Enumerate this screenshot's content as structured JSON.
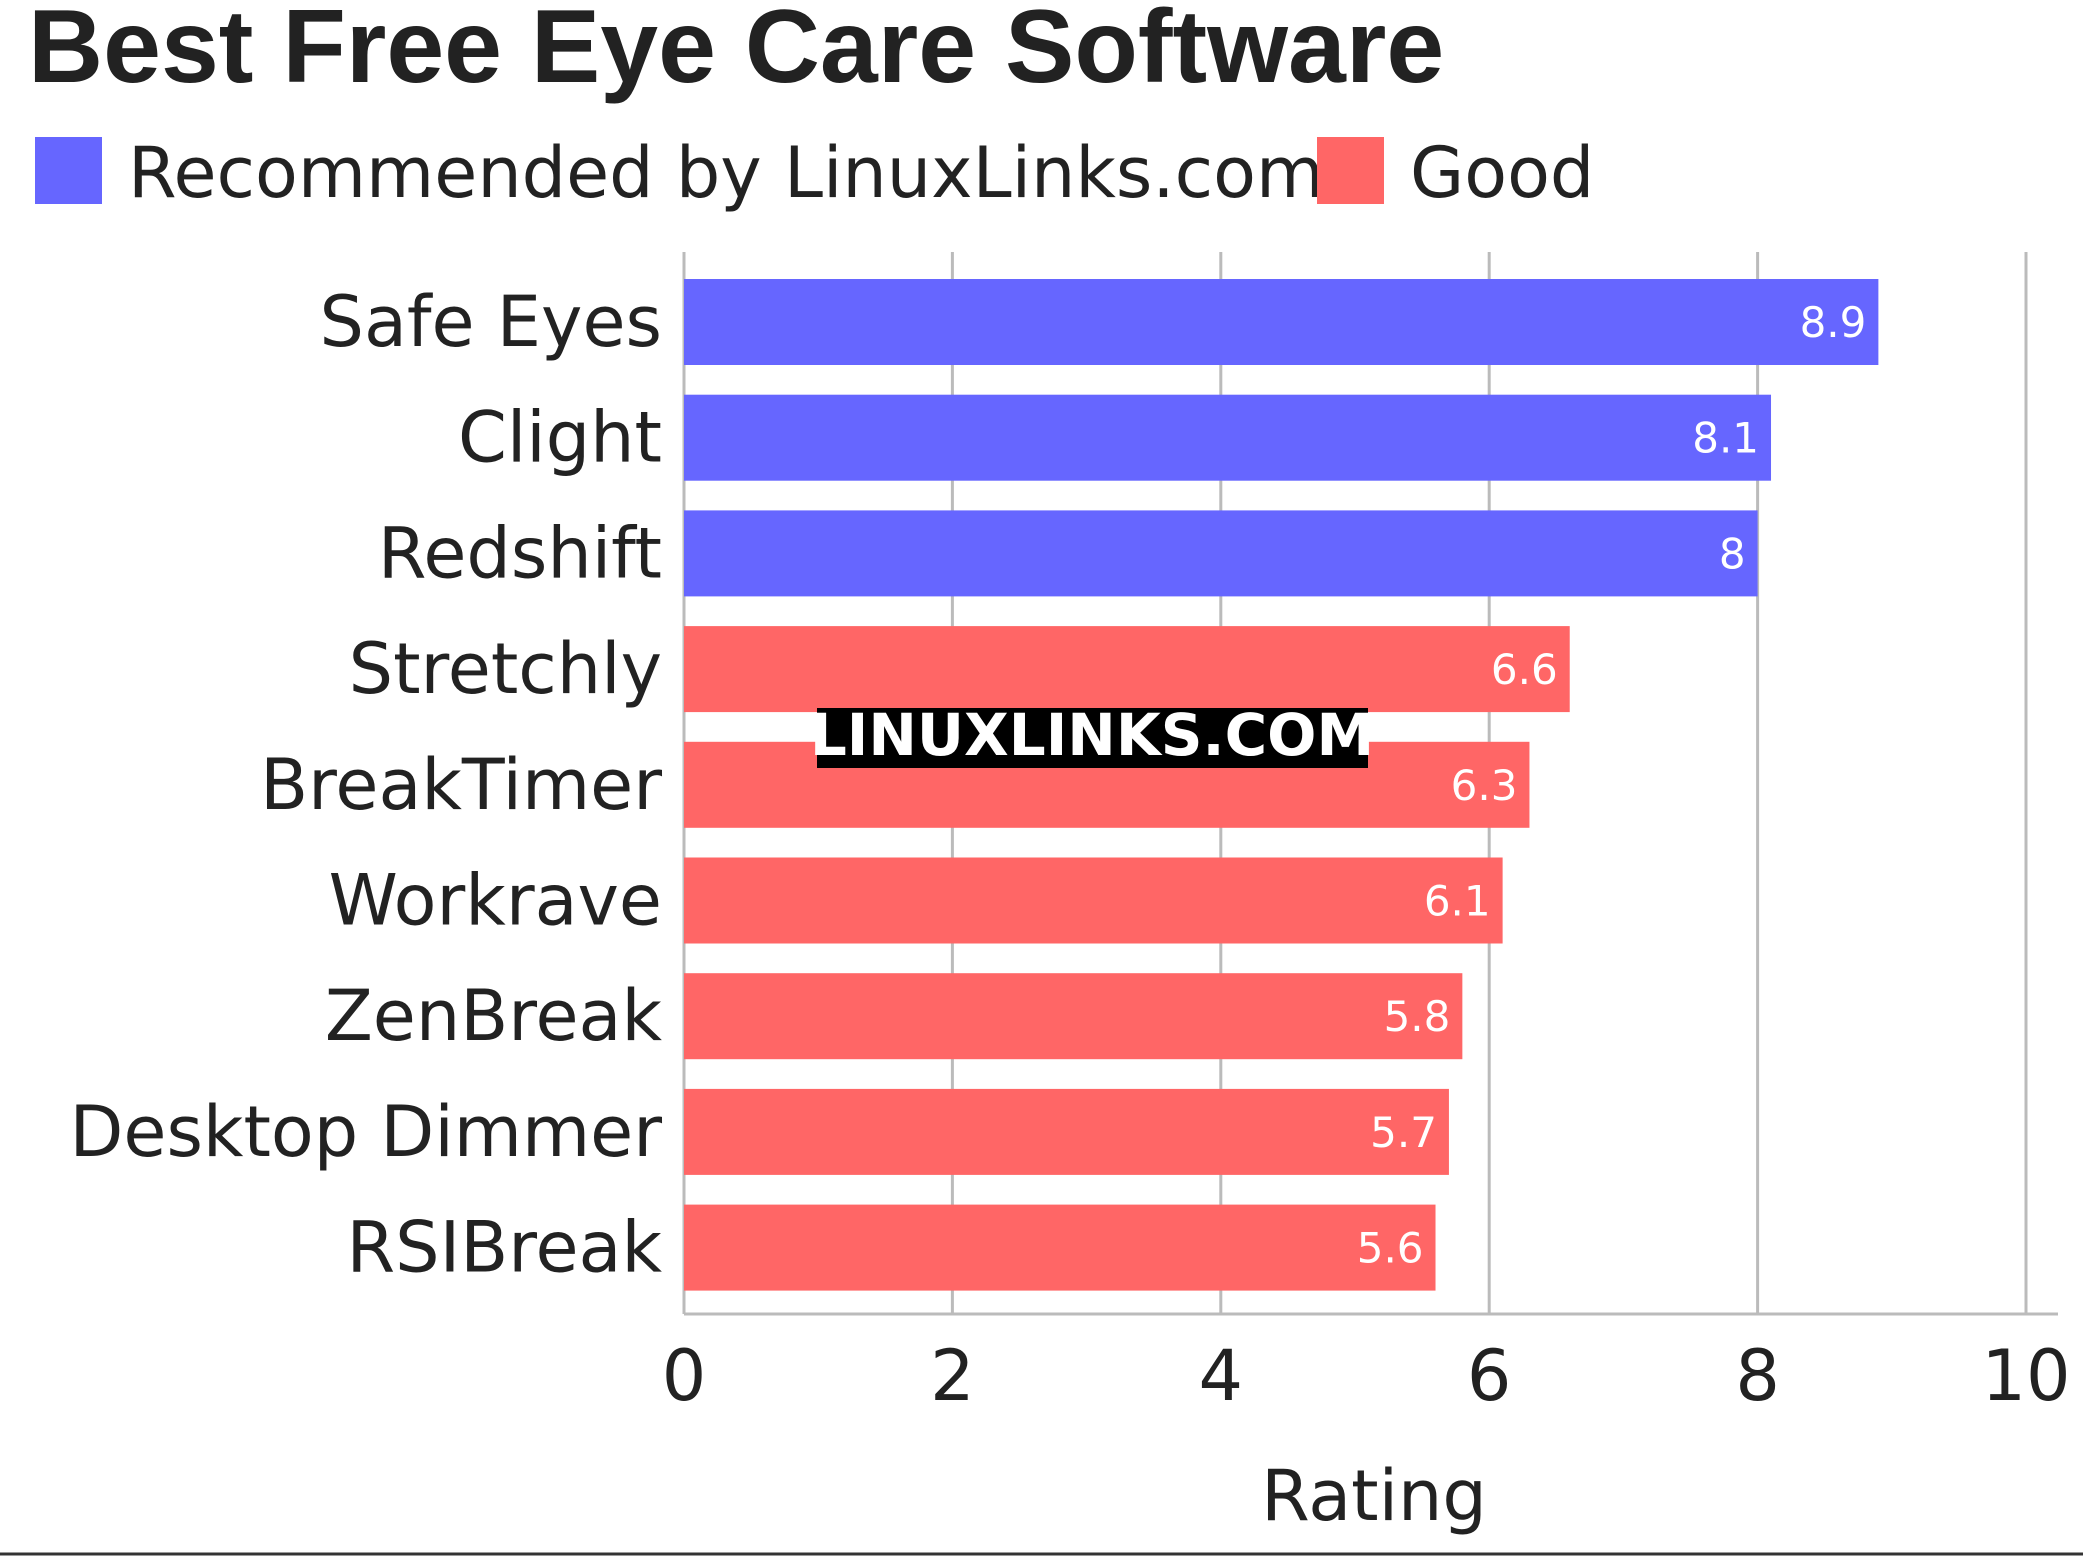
{
  "chart_data": {
    "type": "bar",
    "orientation": "horizontal",
    "title": "Best Free Eye Care Software",
    "xlabel": "Rating",
    "ylabel": "",
    "xlim": [
      0,
      10
    ],
    "xticks": [
      "0",
      "2",
      "4",
      "6",
      "8",
      "10"
    ],
    "grid": true,
    "legend_position": "top-left",
    "legend": [
      {
        "name": "Recommended by LinuxLinks.com",
        "color": "#6666ff"
      },
      {
        "name": "Good",
        "color": "#ff6666"
      }
    ],
    "categories": [
      "Safe Eyes",
      "Clight",
      "Redshift",
      "Stretchly",
      "BreakTimer",
      "Workrave",
      "ZenBreak",
      "Desktop Dimmer",
      "RSIBreak"
    ],
    "values": [
      8.9,
      8.1,
      8,
      6.6,
      6.3,
      6.1,
      5.8,
      5.7,
      5.6
    ],
    "value_labels": [
      "8.9",
      "8.1",
      "8",
      "6.6",
      "6.3",
      "6.1",
      "5.8",
      "5.7",
      "5.6"
    ],
    "groups": [
      "Recommended by LinuxLinks.com",
      "Recommended by LinuxLinks.com",
      "Recommended by LinuxLinks.com",
      "Good",
      "Good",
      "Good",
      "Good",
      "Good",
      "Good"
    ],
    "watermark": "LINUXLINKS.COM"
  }
}
